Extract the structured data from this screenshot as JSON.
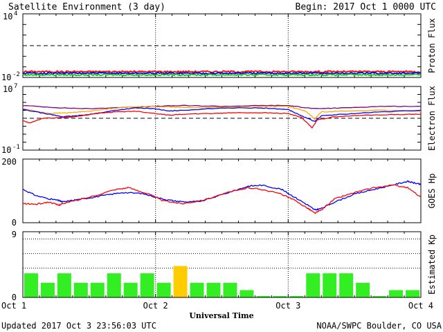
{
  "header": {
    "title": "Satellite Environment (3 day)",
    "begin": "Begin:  2017 Oct 1 0000 UTC"
  },
  "footer": {
    "updated": "Updated 2017 Oct  3 23:56:03 UTC",
    "credit": "NOAA/SWPC Boulder, CO USA"
  },
  "chart_data": [
    {
      "type": "line",
      "ylabel": "Proton Flux",
      "ymin_label": "10",
      "ymin_exp": "-2",
      "ymax_label": "10",
      "ymax_exp": "4",
      "log_range": [
        -2,
        4
      ],
      "threshold_log": 1,
      "series": [
        {
          "color": "#ff0000",
          "base_log": -1.45,
          "noise": 0.08
        },
        {
          "color": "#0000ff",
          "base_log": -1.6,
          "noise": 0.07
        },
        {
          "color": "#00cc00",
          "base_log": -1.75,
          "noise": 0.07
        }
      ]
    },
    {
      "type": "line",
      "ylabel": "Electron Flux",
      "ymin_label": "10",
      "ymin_exp": "-1",
      "ymax_label": "10",
      "ymax_exp": "7",
      "log_range": [
        -1,
        7
      ],
      "threshold_log": 3,
      "series": [
        {
          "color": "#800080",
          "points": [
            [
              0,
              4.6
            ],
            [
              0.3,
              4.3
            ],
            [
              0.5,
              4.2
            ],
            [
              0.8,
              4.4
            ],
            [
              1.0,
              4.5
            ],
            [
              1.2,
              4.6
            ],
            [
              1.5,
              4.5
            ],
            [
              1.8,
              4.6
            ],
            [
              2.0,
              4.6
            ],
            [
              2.1,
              4.4
            ],
            [
              2.2,
              4.2
            ],
            [
              2.4,
              4.3
            ],
            [
              2.7,
              4.5
            ],
            [
              3.0,
              4.5
            ]
          ]
        },
        {
          "color": "#ffa500",
          "points": [
            [
              0,
              4.2
            ],
            [
              0.2,
              3.6
            ],
            [
              0.35,
              3.7
            ],
            [
              0.5,
              3.9
            ],
            [
              0.7,
              4.3
            ],
            [
              0.9,
              4.5
            ],
            [
              1.1,
              4.45
            ],
            [
              1.3,
              4.3
            ],
            [
              1.5,
              4.4
            ],
            [
              1.8,
              4.5
            ],
            [
              2.0,
              4.5
            ],
            [
              2.13,
              3.9
            ],
            [
              2.2,
              2.9
            ],
            [
              2.25,
              3.8
            ],
            [
              2.4,
              3.9
            ],
            [
              2.7,
              4.0
            ],
            [
              3.0,
              3.9
            ]
          ]
        },
        {
          "color": "#0000ff",
          "points": [
            [
              0,
              4.1
            ],
            [
              0.2,
              3.5
            ],
            [
              0.3,
              3.2
            ],
            [
              0.4,
              3.3
            ],
            [
              0.55,
              3.6
            ],
            [
              0.7,
              4.0
            ],
            [
              0.85,
              4.3
            ],
            [
              1.0,
              4.2
            ],
            [
              1.1,
              3.9
            ],
            [
              1.2,
              4.0
            ],
            [
              1.5,
              4.3
            ],
            [
              1.8,
              4.3
            ],
            [
              2.0,
              4.1
            ],
            [
              2.1,
              3.3
            ],
            [
              2.2,
              2.6
            ],
            [
              2.25,
              3.3
            ],
            [
              2.4,
              3.5
            ],
            [
              2.7,
              3.8
            ],
            [
              3.0,
              4.0
            ]
          ]
        },
        {
          "color": "#ff0000",
          "points": [
            [
              0,
              2.7
            ],
            [
              0.05,
              2.4
            ],
            [
              0.15,
              3.0
            ],
            [
              0.3,
              3.1
            ],
            [
              0.4,
              3.2
            ],
            [
              0.55,
              3.6
            ],
            [
              0.7,
              3.8
            ],
            [
              0.85,
              3.9
            ],
            [
              1.0,
              3.6
            ],
            [
              1.1,
              3.4
            ],
            [
              1.2,
              3.5
            ],
            [
              1.4,
              3.6
            ],
            [
              1.6,
              3.7
            ],
            [
              1.8,
              3.7
            ],
            [
              2.0,
              3.6
            ],
            [
              2.1,
              3.1
            ],
            [
              2.18,
              1.8
            ],
            [
              2.22,
              2.8
            ],
            [
              2.35,
              3.2
            ],
            [
              2.6,
              3.4
            ],
            [
              2.9,
              3.5
            ],
            [
              3.0,
              3.5
            ]
          ]
        }
      ]
    },
    {
      "type": "line",
      "ylabel": "GOES Hp",
      "ymin_label": "0",
      "ymax_label": "200",
      "range": [
        0,
        200
      ],
      "series": [
        {
          "color": "#0000ff",
          "points": [
            [
              0,
              105
            ],
            [
              0.1,
              85
            ],
            [
              0.2,
              75
            ],
            [
              0.27,
              70
            ],
            [
              0.3,
              65
            ],
            [
              0.4,
              72
            ],
            [
              0.5,
              78
            ],
            [
              0.6,
              85
            ],
            [
              0.75,
              95
            ],
            [
              0.9,
              92
            ],
            [
              1.05,
              75
            ],
            [
              1.15,
              68
            ],
            [
              1.25,
              65
            ],
            [
              1.35,
              68
            ],
            [
              1.55,
              95
            ],
            [
              1.7,
              115
            ],
            [
              1.8,
              118
            ],
            [
              1.95,
              105
            ],
            [
              2.05,
              80
            ],
            [
              2.15,
              55
            ],
            [
              2.2,
              40
            ],
            [
              2.25,
              45
            ],
            [
              2.35,
              65
            ],
            [
              2.5,
              90
            ],
            [
              2.65,
              105
            ],
            [
              2.8,
              120
            ],
            [
              2.9,
              130
            ],
            [
              2.95,
              125
            ],
            [
              3.0,
              120
            ]
          ]
        },
        {
          "color": "#ff0000",
          "points": [
            [
              0,
              60
            ],
            [
              0.1,
              58
            ],
            [
              0.2,
              65
            ],
            [
              0.27,
              55
            ],
            [
              0.3,
              60
            ],
            [
              0.5,
              80
            ],
            [
              0.7,
              105
            ],
            [
              0.8,
              110
            ],
            [
              0.95,
              90
            ],
            [
              1.05,
              70
            ],
            [
              1.2,
              60
            ],
            [
              1.35,
              70
            ],
            [
              1.55,
              95
            ],
            [
              1.7,
              110
            ],
            [
              1.8,
              105
            ],
            [
              1.95,
              90
            ],
            [
              2.05,
              70
            ],
            [
              2.15,
              45
            ],
            [
              2.2,
              30
            ],
            [
              2.25,
              40
            ],
            [
              2.35,
              75
            ],
            [
              2.5,
              95
            ],
            [
              2.65,
              110
            ],
            [
              2.8,
              118
            ],
            [
              2.9,
              110
            ],
            [
              3.0,
              80
            ]
          ]
        }
      ]
    },
    {
      "type": "bar",
      "ylabel": "Estimated Kp",
      "ymin_label": "0",
      "ymax_label": "9",
      "range": [
        0,
        9
      ],
      "dotted_levels": [
        4,
        6,
        8
      ],
      "values": [
        3.3,
        2,
        3.3,
        2,
        2,
        3.3,
        2,
        3.3,
        2,
        4.3,
        2,
        2,
        2,
        1,
        0.2,
        0.2,
        0.2,
        3.3,
        3.3,
        3.3,
        2,
        0.2,
        1,
        1
      ],
      "bar_colors": [
        "#33ee22",
        "#33ee22",
        "#33ee22",
        "#33ee22",
        "#33ee22",
        "#33ee22",
        "#33ee22",
        "#33ee22",
        "#33ee22",
        "#ffcc00",
        "#33ee22",
        "#33ee22",
        "#33ee22",
        "#33ee22",
        "#33ee22",
        "#33ee22",
        "#33ee22",
        "#33ee22",
        "#33ee22",
        "#33ee22",
        "#33ee22",
        "#33ee22",
        "#33ee22",
        "#33ee22"
      ]
    }
  ],
  "x_axis": {
    "title": "Universal Time",
    "day_labels": [
      "Oct 1",
      "Oct 2",
      "Oct 3",
      "Oct 4"
    ]
  }
}
